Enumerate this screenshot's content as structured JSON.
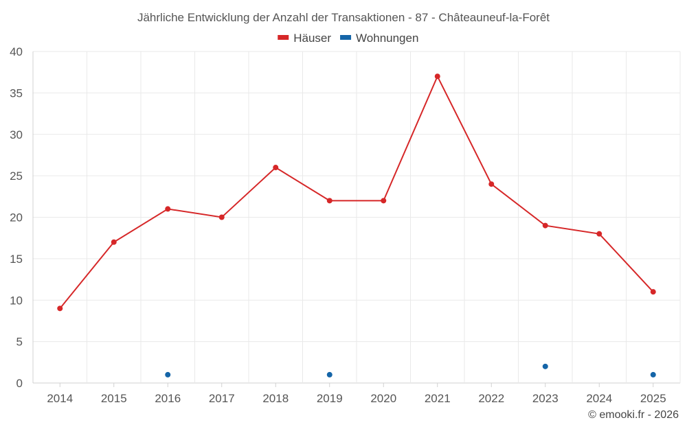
{
  "chart_data": {
    "type": "line",
    "title": "Jährliche Entwicklung der Anzahl der Transaktionen - 87 - Châteauneuf-la-Forêt",
    "xlabel": "",
    "ylabel": "",
    "categories": [
      "2014",
      "2015",
      "2016",
      "2017",
      "2018",
      "2019",
      "2020",
      "2021",
      "2022",
      "2023",
      "2024",
      "2025"
    ],
    "ylim": [
      0,
      40
    ],
    "yticks": [
      0,
      5,
      10,
      15,
      20,
      25,
      30,
      35,
      40
    ],
    "grid": true,
    "legend_position": "top-center",
    "series": [
      {
        "name": "Häuser",
        "color": "#d62728",
        "style": "line-markers",
        "values": [
          9,
          17,
          21,
          20,
          26,
          22,
          22,
          37,
          24,
          19,
          18,
          11
        ]
      },
      {
        "name": "Wohnungen",
        "color": "#1565a8",
        "style": "markers",
        "values": [
          null,
          null,
          1,
          null,
          null,
          1,
          null,
          null,
          null,
          2,
          null,
          1
        ]
      }
    ]
  },
  "credit": "© emooki.fr - 2026"
}
